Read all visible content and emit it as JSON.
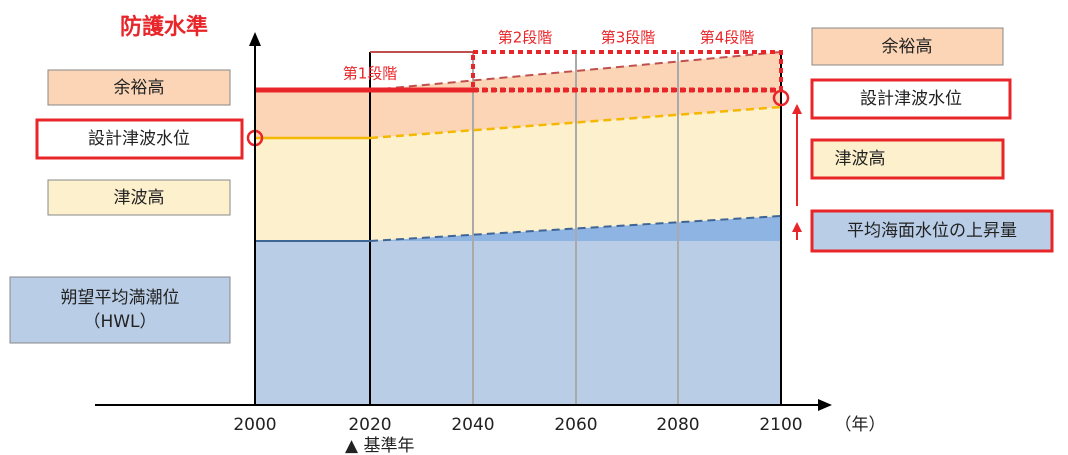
{
  "title": "防護水準",
  "x_axis": {
    "years": [
      "2000",
      "2020",
      "2040",
      "2060",
      "2080",
      "2100"
    ],
    "unit": "（年）",
    "base_year": "▲ 基準年"
  },
  "stages": [
    "第1段階",
    "第2段階",
    "第3段階",
    "第4段階"
  ],
  "left_labels": {
    "margin": "余裕高",
    "design_level": "設計津波水位",
    "tsunami": "津波高",
    "hwl": "朔望平均満潮位\n（HWL）"
  },
  "right_labels": {
    "margin": "余裕高",
    "design_level": "設計津波水位",
    "tsunami": "津波高",
    "sea_rise": "平均海面水位の上昇量"
  }
}
